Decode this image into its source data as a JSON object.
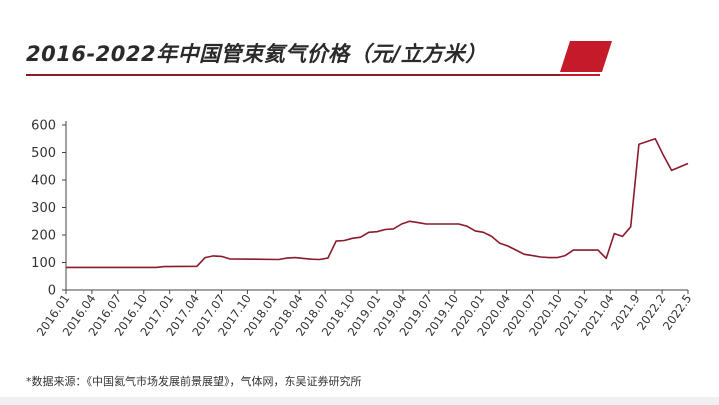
{
  "header": {
    "title": "2016-2022年中国管束氦气价格（元/立方米）"
  },
  "footer": {
    "source": "*数据来源：《中国氦气市场发展前景展望》，气体网，东吴证券研究所"
  },
  "colors": {
    "line": "#8b1a2b",
    "accent": "#c41a2a",
    "axis": "#444444"
  },
  "chart_data": {
    "type": "line",
    "title": "2016-2022年中国管束氦气价格（元/立方米）",
    "xlabel": "",
    "ylabel": "",
    "ylim": [
      0,
      600
    ],
    "yticks": [
      0,
      100,
      200,
      300,
      400,
      500,
      600
    ],
    "grid": false,
    "legend": "none",
    "xticks": [
      "2016.01",
      "2016.04",
      "2016.07",
      "2016.10",
      "2017.01",
      "2017.04",
      "2017.07",
      "2017.10",
      "2018.01",
      "2018.04",
      "2018.07",
      "2018.10",
      "2019.01",
      "2019.04",
      "2019.07",
      "2019.10",
      "2020.01",
      "2020.04",
      "2020.07",
      "2020.10",
      "2021.01",
      "2021.04",
      "2021.9",
      "2022.2",
      "2022.5"
    ],
    "series": [
      {
        "values": [
          [
            "2016-01",
            82
          ],
          [
            "2016-06",
            82
          ],
          [
            "2016-12",
            82
          ],
          [
            "2017-01",
            85
          ],
          [
            "2017-05",
            86
          ],
          [
            "2017-06",
            118
          ],
          [
            "2017-07",
            124
          ],
          [
            "2017-08",
            122
          ],
          [
            "2017-09",
            113
          ],
          [
            "2017-12",
            112
          ],
          [
            "2018-03",
            111
          ],
          [
            "2018-04",
            116
          ],
          [
            "2018-05",
            118
          ],
          [
            "2018-06",
            115
          ],
          [
            "2018-07",
            112
          ],
          [
            "2018-08",
            111
          ],
          [
            "2018-09",
            116
          ],
          [
            "2018-10",
            178
          ],
          [
            "2018-11",
            180
          ],
          [
            "2018-12",
            188
          ],
          [
            "2019-01",
            192
          ],
          [
            "2019-02",
            210
          ],
          [
            "2019-03",
            212
          ],
          [
            "2019-04",
            220
          ],
          [
            "2019-05",
            222
          ],
          [
            "2019-06",
            240
          ],
          [
            "2019-07",
            250
          ],
          [
            "2019-08",
            245
          ],
          [
            "2019-09",
            240
          ],
          [
            "2019-12",
            240
          ],
          [
            "2020-01",
            240
          ],
          [
            "2020-02",
            232
          ],
          [
            "2020-03",
            215
          ],
          [
            "2020-04",
            210
          ],
          [
            "2020-05",
            195
          ],
          [
            "2020-06",
            170
          ],
          [
            "2020-07",
            160
          ],
          [
            "2020-08",
            145
          ],
          [
            "2020-09",
            130
          ],
          [
            "2020-10",
            125
          ],
          [
            "2020-11",
            120
          ],
          [
            "2020-12",
            118
          ],
          [
            "2021-01",
            118
          ],
          [
            "2021-02",
            125
          ],
          [
            "2021-03",
            145
          ],
          [
            "2021-04",
            145
          ],
          [
            "2021-05",
            145
          ],
          [
            "2021-06",
            145
          ],
          [
            "2021-07",
            115
          ],
          [
            "2021-08",
            205
          ],
          [
            "2021-09",
            195
          ],
          [
            "2021-10",
            230
          ],
          [
            "2021-11",
            530
          ],
          [
            "2021-12",
            540
          ],
          [
            "2022-01",
            550
          ],
          [
            "2022-02",
            490
          ],
          [
            "2022-03",
            435
          ],
          [
            "2022-05",
            460
          ]
        ]
      }
    ]
  }
}
